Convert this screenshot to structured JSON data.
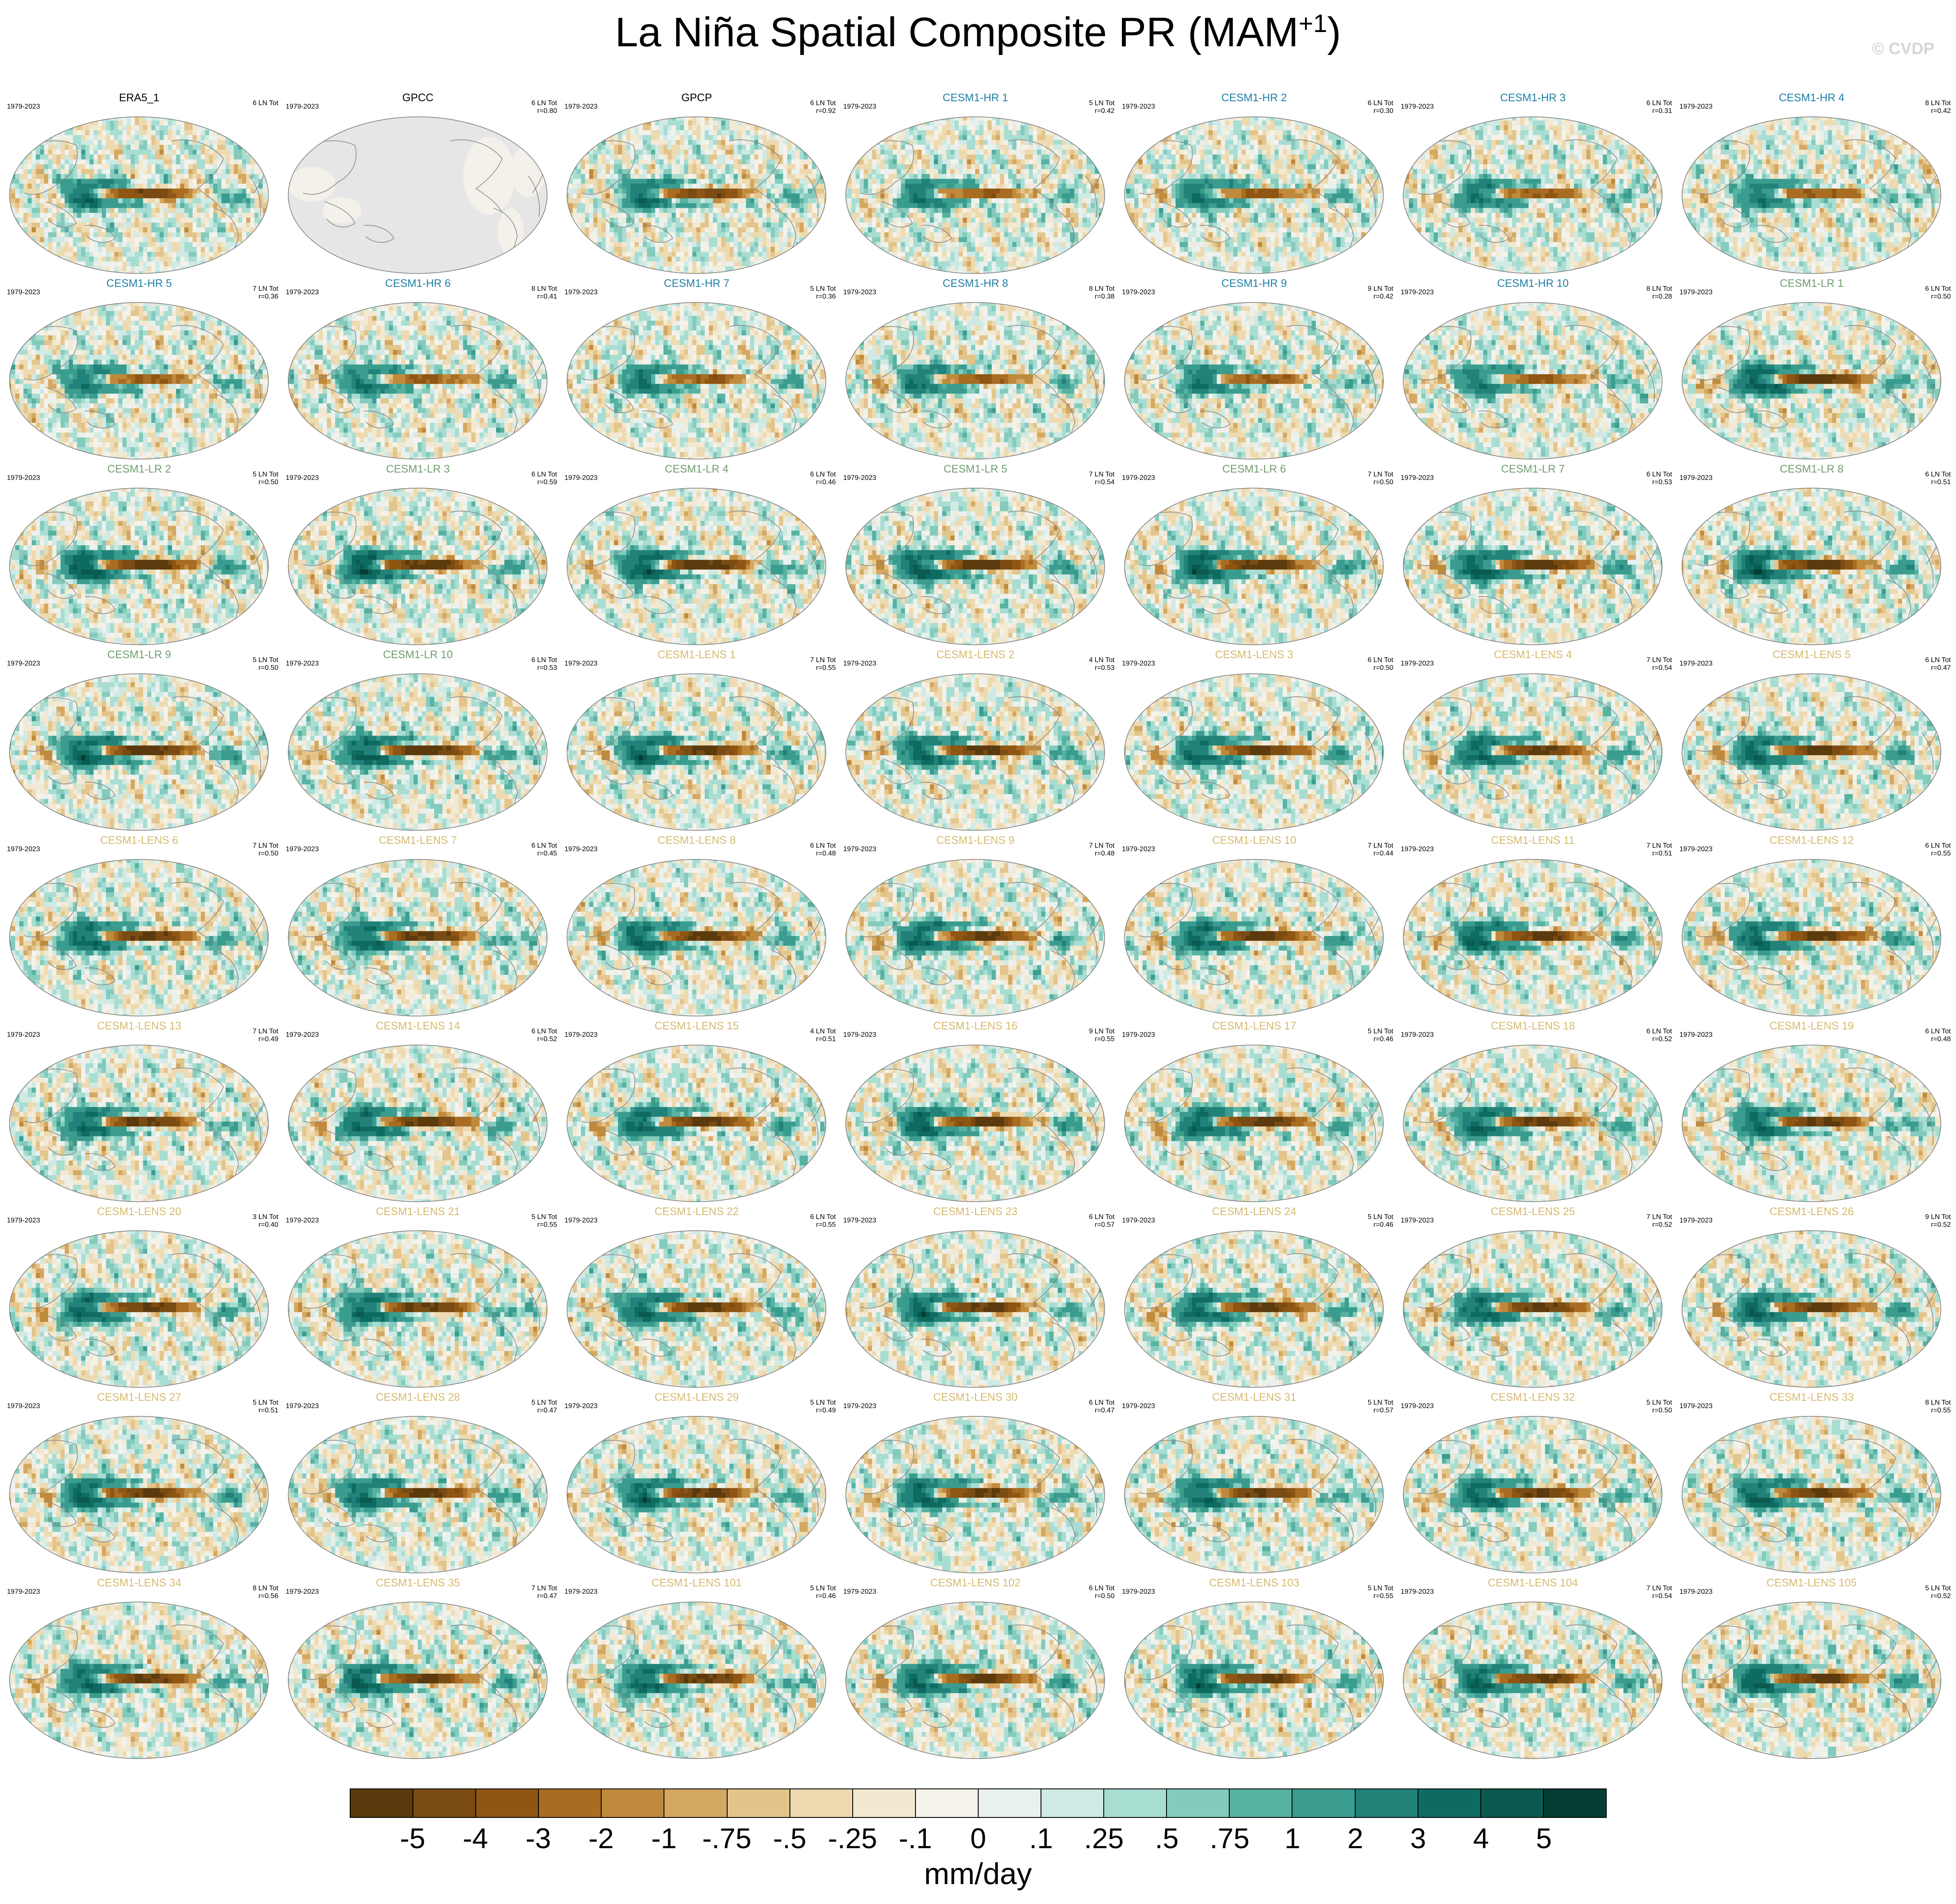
{
  "title": "La Niña Spatial Composite PR (MAM",
  "title_superscript": "+1",
  "title_close": ")",
  "watermark": "© CVDP",
  "years": "1979-2023",
  "colors": {
    "obs_label": "#000000",
    "hr_label": "#1f7fa6",
    "lr_label": "#6f9e6e",
    "lens_label": "#d6ba6f",
    "land_missing": "#e6e6e6",
    "coast": "#8a8a8a"
  },
  "panels": [
    {
      "name": "ERA5_1",
      "group": "obs",
      "count": "6 LN Tot",
      "corr": ""
    },
    {
      "name": "GPCC",
      "group": "obs",
      "count": "6 LN Tot",
      "corr": "r=0.80"
    },
    {
      "name": "GPCP",
      "group": "obs",
      "count": "6 LN Tot",
      "corr": "r=0.92"
    },
    {
      "name": "CESM1-HR 1",
      "group": "hr",
      "count": "5 LN Tot",
      "corr": "r=0.42"
    },
    {
      "name": "CESM1-HR 2",
      "group": "hr",
      "count": "6 LN Tot",
      "corr": "r=0.30"
    },
    {
      "name": "CESM1-HR 3",
      "group": "hr",
      "count": "6 LN Tot",
      "corr": "r=0.31"
    },
    {
      "name": "CESM1-HR 4",
      "group": "hr",
      "count": "8 LN Tot",
      "corr": "r=0.42"
    },
    {
      "name": "CESM1-HR 5",
      "group": "hr",
      "count": "7 LN Tot",
      "corr": "r=0.36"
    },
    {
      "name": "CESM1-HR 6",
      "group": "hr",
      "count": "8 LN Tot",
      "corr": "r=0.41"
    },
    {
      "name": "CESM1-HR 7",
      "group": "hr",
      "count": "5 LN Tot",
      "corr": "r=0.36"
    },
    {
      "name": "CESM1-HR 8",
      "group": "hr",
      "count": "8 LN Tot",
      "corr": "r=0.38"
    },
    {
      "name": "CESM1-HR 9",
      "group": "hr",
      "count": "9 LN Tot",
      "corr": "r=0.42"
    },
    {
      "name": "CESM1-HR 10",
      "group": "hr",
      "count": "8 LN Tot",
      "corr": "r=0.28"
    },
    {
      "name": "CESM1-LR 1",
      "group": "lr",
      "count": "6 LN Tot",
      "corr": "r=0.50"
    },
    {
      "name": "CESM1-LR 2",
      "group": "lr",
      "count": "5 LN Tot",
      "corr": "r=0.50"
    },
    {
      "name": "CESM1-LR 3",
      "group": "lr",
      "count": "6 LN Tot",
      "corr": "r=0.59"
    },
    {
      "name": "CESM1-LR 4",
      "group": "lr",
      "count": "6 LN Tot",
      "corr": "r=0.46"
    },
    {
      "name": "CESM1-LR 5",
      "group": "lr",
      "count": "7 LN Tot",
      "corr": "r=0.54"
    },
    {
      "name": "CESM1-LR 6",
      "group": "lr",
      "count": "7 LN Tot",
      "corr": "r=0.50"
    },
    {
      "name": "CESM1-LR 7",
      "group": "lr",
      "count": "6 LN Tot",
      "corr": "r=0.53"
    },
    {
      "name": "CESM1-LR 8",
      "group": "lr",
      "count": "6 LN Tot",
      "corr": "r=0.51"
    },
    {
      "name": "CESM1-LR 9",
      "group": "lr",
      "count": "5 LN Tot",
      "corr": "r=0.50"
    },
    {
      "name": "CESM1-LR 10",
      "group": "lr",
      "count": "6 LN Tot",
      "corr": "r=0.53"
    },
    {
      "name": "CESM1-LENS 1",
      "group": "lens",
      "count": "7 LN Tot",
      "corr": "r=0.55"
    },
    {
      "name": "CESM1-LENS 2",
      "group": "lens",
      "count": "4 LN Tot",
      "corr": "r=0.53"
    },
    {
      "name": "CESM1-LENS 3",
      "group": "lens",
      "count": "6 LN Tot",
      "corr": "r=0.50"
    },
    {
      "name": "CESM1-LENS 4",
      "group": "lens",
      "count": "7 LN Tot",
      "corr": "r=0.54"
    },
    {
      "name": "CESM1-LENS 5",
      "group": "lens",
      "count": "6 LN Tot",
      "corr": "r=0.47"
    },
    {
      "name": "CESM1-LENS 6",
      "group": "lens",
      "count": "7 LN Tot",
      "corr": "r=0.50"
    },
    {
      "name": "CESM1-LENS 7",
      "group": "lens",
      "count": "6 LN Tot",
      "corr": "r=0.45"
    },
    {
      "name": "CESM1-LENS 8",
      "group": "lens",
      "count": "6 LN Tot",
      "corr": "r=0.48"
    },
    {
      "name": "CESM1-LENS 9",
      "group": "lens",
      "count": "7 LN Tot",
      "corr": "r=0.48"
    },
    {
      "name": "CESM1-LENS 10",
      "group": "lens",
      "count": "7 LN Tot",
      "corr": "r=0.44"
    },
    {
      "name": "CESM1-LENS 11",
      "group": "lens",
      "count": "7 LN Tot",
      "corr": "r=0.51"
    },
    {
      "name": "CESM1-LENS 12",
      "group": "lens",
      "count": "6 LN Tot",
      "corr": "r=0.55"
    },
    {
      "name": "CESM1-LENS 13",
      "group": "lens",
      "count": "7 LN Tot",
      "corr": "r=0.49"
    },
    {
      "name": "CESM1-LENS 14",
      "group": "lens",
      "count": "6 LN Tot",
      "corr": "r=0.52"
    },
    {
      "name": "CESM1-LENS 15",
      "group": "lens",
      "count": "4 LN Tot",
      "corr": "r=0.51"
    },
    {
      "name": "CESM1-LENS 16",
      "group": "lens",
      "count": "9 LN Tot",
      "corr": "r=0.55"
    },
    {
      "name": "CESM1-LENS 17",
      "group": "lens",
      "count": "5 LN Tot",
      "corr": "r=0.46"
    },
    {
      "name": "CESM1-LENS 18",
      "group": "lens",
      "count": "6 LN Tot",
      "corr": "r=0.52"
    },
    {
      "name": "CESM1-LENS 19",
      "group": "lens",
      "count": "6 LN Tot",
      "corr": "r=0.48"
    },
    {
      "name": "CESM1-LENS 20",
      "group": "lens",
      "count": "3 LN Tot",
      "corr": "r=0.40"
    },
    {
      "name": "CESM1-LENS 21",
      "group": "lens",
      "count": "5 LN Tot",
      "corr": "r=0.55"
    },
    {
      "name": "CESM1-LENS 22",
      "group": "lens",
      "count": "6 LN Tot",
      "corr": "r=0.55"
    },
    {
      "name": "CESM1-LENS 23",
      "group": "lens",
      "count": "6 LN Tot",
      "corr": "r=0.57"
    },
    {
      "name": "CESM1-LENS 24",
      "group": "lens",
      "count": "5 LN Tot",
      "corr": "r=0.46"
    },
    {
      "name": "CESM1-LENS 25",
      "group": "lens",
      "count": "7 LN Tot",
      "corr": "r=0.52"
    },
    {
      "name": "CESM1-LENS 26",
      "group": "lens",
      "count": "9 LN Tot",
      "corr": "r=0.52"
    },
    {
      "name": "CESM1-LENS 27",
      "group": "lens",
      "count": "5 LN Tot",
      "corr": "r=0.51"
    },
    {
      "name": "CESM1-LENS 28",
      "group": "lens",
      "count": "5 LN Tot",
      "corr": "r=0.47"
    },
    {
      "name": "CESM1-LENS 29",
      "group": "lens",
      "count": "5 LN Tot",
      "corr": "r=0.49"
    },
    {
      "name": "CESM1-LENS 30",
      "group": "lens",
      "count": "6 LN Tot",
      "corr": "r=0.47"
    },
    {
      "name": "CESM1-LENS 31",
      "group": "lens",
      "count": "5 LN Tot",
      "corr": "r=0.57"
    },
    {
      "name": "CESM1-LENS 32",
      "group": "lens",
      "count": "5 LN Tot",
      "corr": "r=0.50"
    },
    {
      "name": "CESM1-LENS 33",
      "group": "lens",
      "count": "8 LN Tot",
      "corr": "r=0.55"
    },
    {
      "name": "CESM1-LENS 34",
      "group": "lens",
      "count": "8 LN Tot",
      "corr": "r=0.56"
    },
    {
      "name": "CESM1-LENS 35",
      "group": "lens",
      "count": "7 LN Tot",
      "corr": "r=0.47"
    },
    {
      "name": "CESM1-LENS 101",
      "group": "lens",
      "count": "5 LN Tot",
      "corr": "r=0.46"
    },
    {
      "name": "CESM1-LENS 102",
      "group": "lens",
      "count": "6 LN Tot",
      "corr": "r=0.50"
    },
    {
      "name": "CESM1-LENS 103",
      "group": "lens",
      "count": "5 LN Tot",
      "corr": "r=0.55"
    },
    {
      "name": "CESM1-LENS 104",
      "group": "lens",
      "count": "7 LN Tot",
      "corr": "r=0.54"
    },
    {
      "name": "CESM1-LENS 105",
      "group": "lens",
      "count": "5 LN Tot",
      "corr": "r=0.52"
    }
  ],
  "colorbar": {
    "colors": [
      "#5b3a0d",
      "#7a4c13",
      "#8f5513",
      "#a86c22",
      "#c08a3c",
      "#d4a862",
      "#e3c58c",
      "#eddab0",
      "#f3e9d2",
      "#f5f2ea",
      "#e9f1ee",
      "#cfeae4",
      "#a8ddd2",
      "#84cbbd",
      "#57b2a2",
      "#3a9c8e",
      "#22827a",
      "#0e6b61",
      "#0a5a4f",
      "#043d34"
    ],
    "labels": [
      "-5",
      "-4",
      "-3",
      "-2",
      "-1",
      "-.75",
      "-.5",
      "-.25",
      "-.1",
      "0",
      ".1",
      ".25",
      ".5",
      ".75",
      "1",
      "2",
      "3",
      "4",
      "5"
    ],
    "units": "mm/day"
  },
  "chart_data": {
    "type": "heatmap",
    "title": "La Niña Spatial Composite PR (MAM+1)",
    "variable": "PR",
    "units": "mm/day",
    "period": "1979-2023",
    "projection": "global ellipse (Robinson-like)",
    "grid": {
      "rows": 9,
      "columns": 7
    },
    "contour_levels": [
      -5,
      -4,
      -3,
      -2,
      -1,
      -0.75,
      -0.5,
      -0.25,
      -0.1,
      0,
      0.1,
      0.25,
      0.5,
      0.75,
      1,
      2,
      3,
      4,
      5
    ],
    "pattern": "negative (brown) anomalies along the central/eastern equatorial Pacific, positive (green) anomalies over the western Pacific and Maritime Continent and flanking the equatorial band"
  }
}
